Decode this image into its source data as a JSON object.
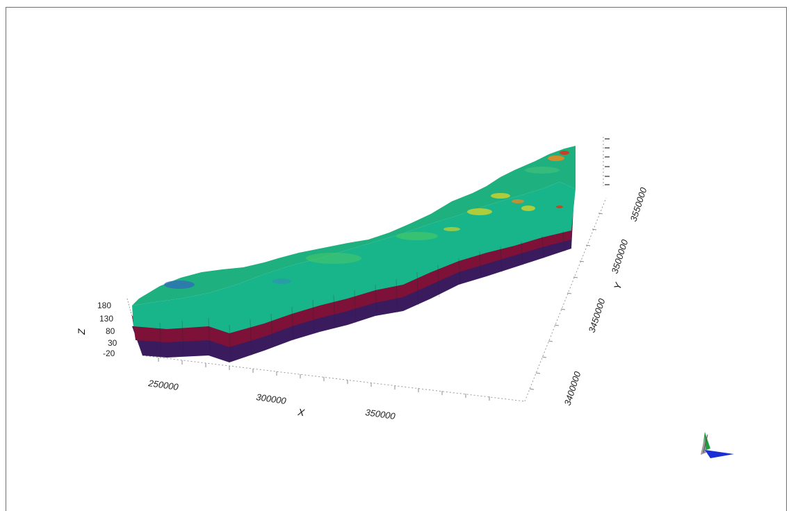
{
  "viewer": {
    "z_axis": {
      "title": "Z",
      "ticks": [
        "180",
        "130",
        "80",
        "30",
        "-20"
      ]
    },
    "x_axis": {
      "title": "X",
      "ticks": [
        "250000",
        "300000",
        "350000"
      ]
    },
    "y_axis": {
      "title": "Y",
      "ticks": [
        "3400000",
        "3450000",
        "3500000",
        "3550000"
      ]
    },
    "layers": [
      {
        "name": "top",
        "color": "#19b58a"
      },
      {
        "name": "middle",
        "color": "#7d1137"
      },
      {
        "name": "bottom",
        "color": "#3a1b5e"
      }
    ],
    "surface_colors": {
      "base": "#1fb07f",
      "light": "#45c66a",
      "yellow": "#c9d12e",
      "orange": "#e38a22",
      "red": "#d23b1f",
      "blue": "#2e6fb5"
    },
    "orientation_widget": {
      "x_color": "#1a2fd6",
      "y_color": "#1c9e3a",
      "z_color": "#9a9a9a"
    }
  }
}
